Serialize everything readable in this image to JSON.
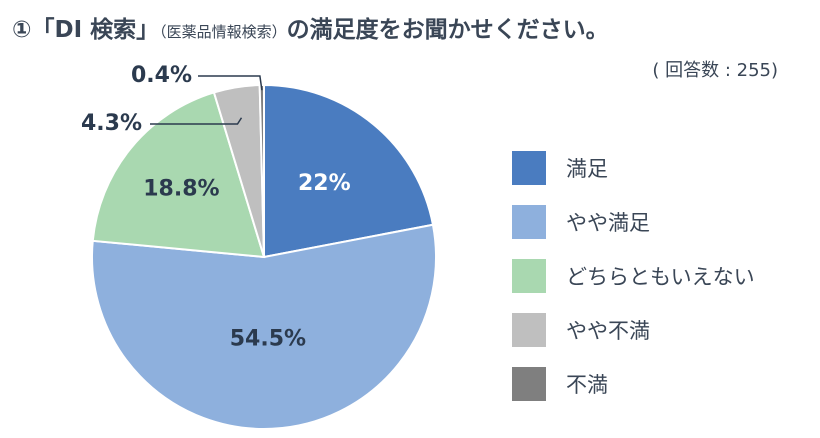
{
  "title": {
    "number": "①",
    "main": "「DI 検索」",
    "sub": "（医薬品情報検索）",
    "tail": "の満足度をお聞かせください。"
  },
  "responses": "( 回答数 : 255)",
  "chart_data": {
    "type": "pie",
    "categories": [
      "満足",
      "やや満足",
      "どちらともいえない",
      "やや不満",
      "不満"
    ],
    "values": [
      22,
      54.5,
      18.8,
      4.3,
      0.4
    ],
    "labels": [
      "22%",
      "54.5%",
      "18.8%",
      "4.3%",
      "0.4%"
    ],
    "colors": [
      "#4a7cc0",
      "#8eb0dd",
      "#a9d8b0",
      "#bfbfbf",
      "#7f7f7f"
    ],
    "legend_position": "right"
  }
}
